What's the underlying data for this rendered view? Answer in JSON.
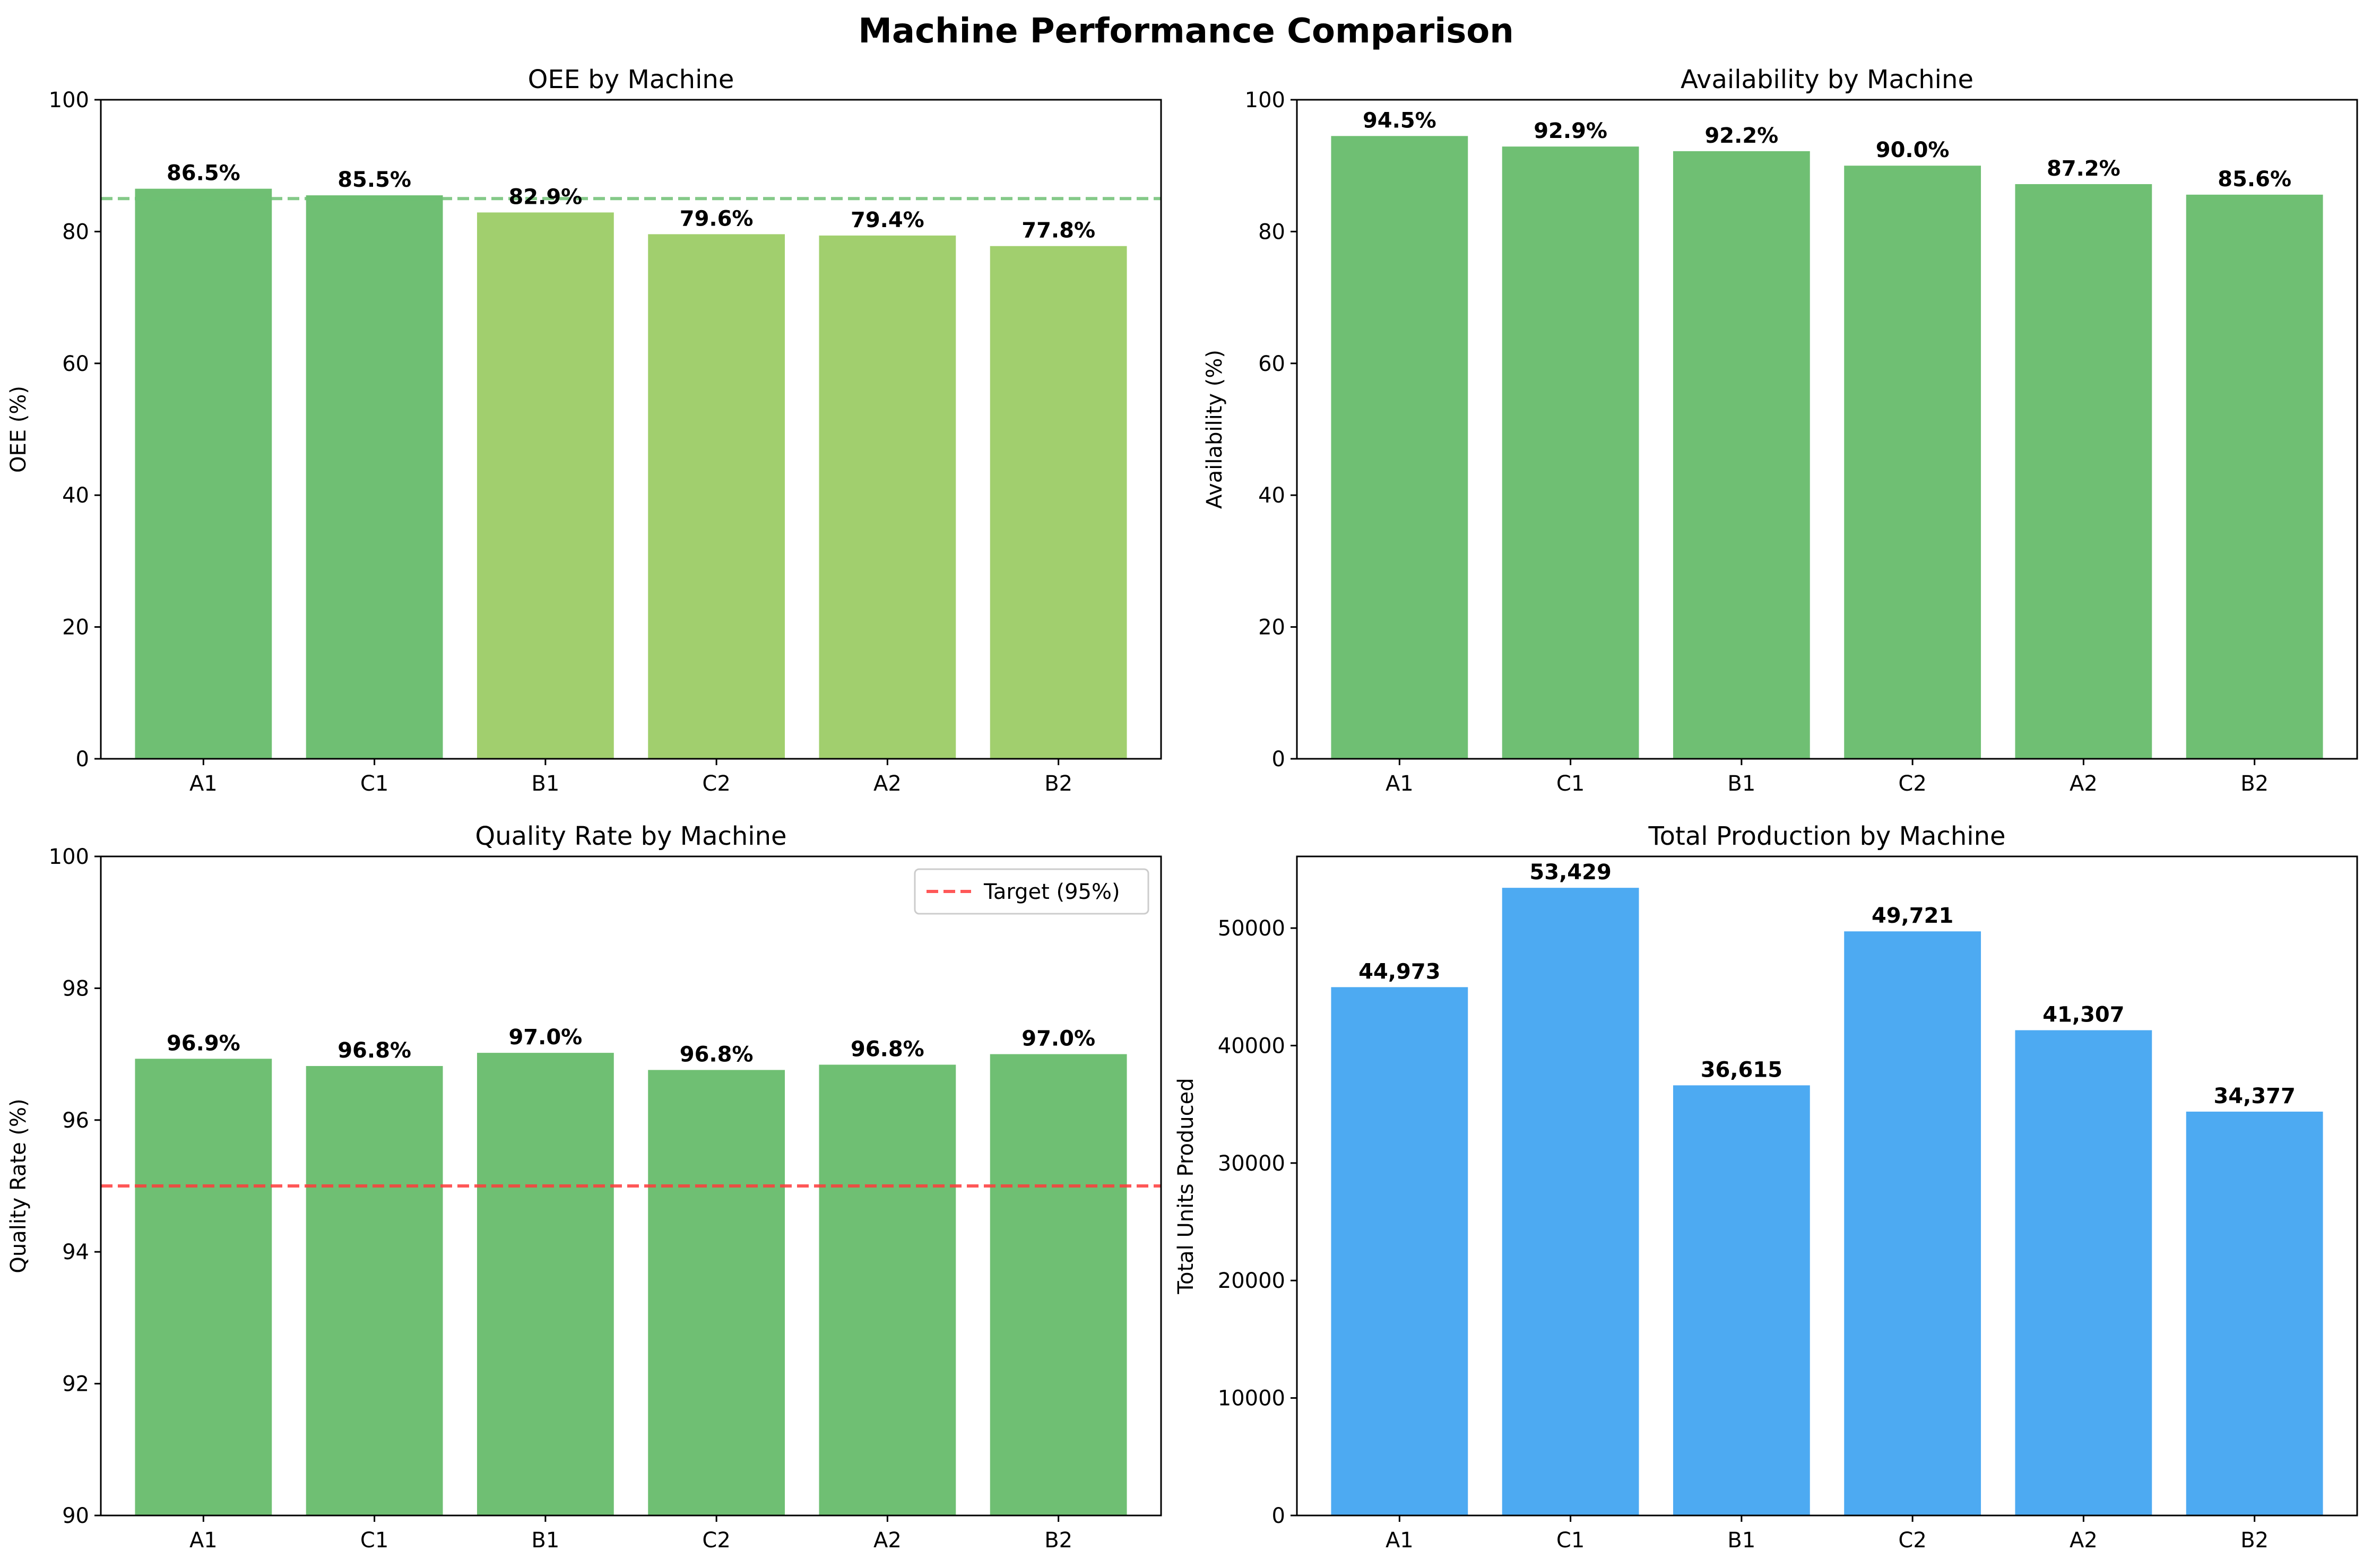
{
  "figure": {
    "title": "Machine Performance Comparison"
  },
  "chart_data": [
    {
      "type": "bar",
      "title": "OEE by Machine",
      "xlabel": "",
      "ylabel": "OEE (%)",
      "ylim": [
        0,
        100
      ],
      "yticks": [
        0,
        20,
        40,
        60,
        80,
        100
      ],
      "categories": [
        "A1",
        "C1",
        "B1",
        "C2",
        "A2",
        "B2"
      ],
      "values": [
        86.5,
        85.5,
        82.9,
        79.6,
        79.4,
        77.8
      ],
      "data_labels": [
        "86.5%",
        "85.5%",
        "82.9%",
        "79.6%",
        "79.4%",
        "77.8%"
      ],
      "bar_colors": [
        "#6fbf73",
        "#6fbf73",
        "#a1cf6e",
        "#a1cf6e",
        "#a1cf6e",
        "#a1cf6e"
      ],
      "reference_line": {
        "y": 85,
        "color": "#6fbf73",
        "style": "dashed"
      },
      "grid": false
    },
    {
      "type": "bar",
      "title": "Availability by Machine",
      "xlabel": "",
      "ylabel": "Availability (%)",
      "ylim": [
        0,
        100
      ],
      "yticks": [
        0,
        20,
        40,
        60,
        80,
        100
      ],
      "categories": [
        "A1",
        "C1",
        "B1",
        "C2",
        "A2",
        "B2"
      ],
      "values": [
        94.5,
        92.9,
        92.2,
        90.0,
        87.2,
        85.6
      ],
      "data_labels": [
        "94.5%",
        "92.9%",
        "92.2%",
        "90.0%",
        "87.2%",
        "85.6%"
      ],
      "bar_colors": [
        "#6fbf73",
        "#6fbf73",
        "#6fbf73",
        "#6fbf73",
        "#6fbf73",
        "#6fbf73"
      ],
      "grid": false
    },
    {
      "type": "bar",
      "title": "Quality Rate by Machine",
      "xlabel": "",
      "ylabel": "Quality Rate (%)",
      "ylim": [
        90,
        100
      ],
      "yticks": [
        90,
        92,
        94,
        96,
        98,
        100
      ],
      "categories": [
        "A1",
        "C1",
        "B1",
        "C2",
        "A2",
        "B2"
      ],
      "values": [
        96.93,
        96.82,
        97.02,
        96.76,
        96.84,
        97.0
      ],
      "data_labels": [
        "96.9%",
        "96.8%",
        "97.0%",
        "96.8%",
        "96.8%",
        "97.0%"
      ],
      "bar_colors": [
        "#6fbf73",
        "#6fbf73",
        "#6fbf73",
        "#6fbf73",
        "#6fbf73",
        "#6fbf73"
      ],
      "reference_line": {
        "y": 95,
        "color": "#ff3b3b",
        "style": "dashed",
        "label": "Target (95%)"
      },
      "legend": {
        "placement": "upper-right",
        "entries": [
          "Target (95%)"
        ]
      },
      "grid": false
    },
    {
      "type": "bar",
      "title": "Total Production by Machine",
      "xlabel": "",
      "ylabel": "Total Units Produced",
      "ylim": [
        0,
        56100
      ],
      "yticks": [
        0,
        10000,
        20000,
        30000,
        40000,
        50000
      ],
      "categories": [
        "A1",
        "C1",
        "B1",
        "C2",
        "A2",
        "B2"
      ],
      "values": [
        44973,
        53429,
        36615,
        49721,
        41307,
        34377
      ],
      "data_labels": [
        "44,973",
        "53,429",
        "36,615",
        "49,721",
        "41,307",
        "34,377"
      ],
      "bar_colors": [
        "#4daaf2",
        "#4daaf2",
        "#4daaf2",
        "#4daaf2",
        "#4daaf2",
        "#4daaf2"
      ],
      "grid": false
    }
  ]
}
